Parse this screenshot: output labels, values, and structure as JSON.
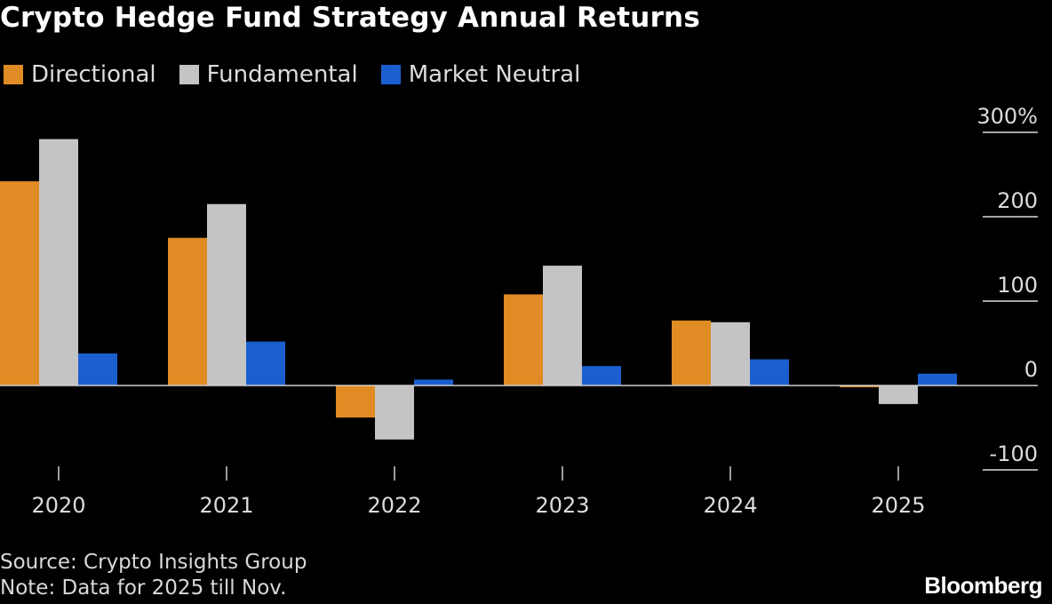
{
  "chart_data": {
    "type": "bar",
    "title": "Crypto Hedge Fund Strategy Annual Returns",
    "categories": [
      "2020",
      "2021",
      "2022",
      "2023",
      "2024",
      "2025"
    ],
    "series": [
      {
        "name": "Directional",
        "color": "#e08b23",
        "values": [
          242,
          175,
          -38,
          108,
          77,
          -2
        ]
      },
      {
        "name": "Fundamental",
        "color": "#c4c4c4",
        "values": [
          292,
          215,
          -64,
          142,
          75,
          -22
        ]
      },
      {
        "name": "Market Neutral",
        "color": "#1b5fcf",
        "values": [
          38,
          52,
          7,
          23,
          31,
          14
        ]
      }
    ],
    "y_ticks": [
      300,
      200,
      100,
      0,
      -100
    ],
    "y_tick_labels": [
      "300%",
      "200",
      "100",
      "0",
      "-100"
    ],
    "ylim": [
      -100,
      300
    ],
    "axis_position": "right",
    "legend_position": "top-left",
    "grid": false
  },
  "footer": {
    "source": "Source: Crypto Insights Group",
    "note": "Note: Data for 2025 till Nov.",
    "brand": "Bloomberg"
  }
}
